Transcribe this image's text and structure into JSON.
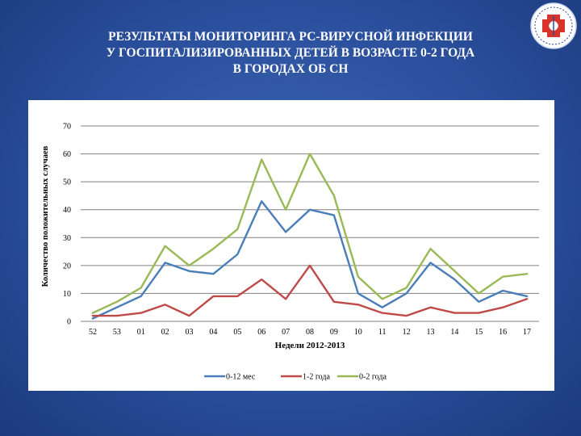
{
  "slide": {
    "title_lines": [
      "РЕЗУЛЬТАТЫ МОНИТОРИНГА РС-ВИРУСНОЙ ИНФЕКЦИИ",
      "У ГОСПИТАЛИЗИРОВАННЫХ ДЕТЕЙ В ВОЗРАСТЕ 0-2 ГОДА",
      "В ГОРОДАХ ОБ СН"
    ]
  },
  "chart_data": {
    "type": "line",
    "xlabel": "Недели 2012-2013",
    "ylabel": "Количество положительных случаев",
    "ylim": [
      0,
      70
    ],
    "yticks": [
      0,
      10,
      20,
      30,
      40,
      50,
      60,
      70
    ],
    "grid": true,
    "legend_position": "bottom",
    "categories": [
      "52",
      "53",
      "01",
      "02",
      "03",
      "04",
      "05",
      "06",
      "07",
      "08",
      "09",
      "10",
      "11",
      "12",
      "13",
      "14",
      "15",
      "16",
      "17"
    ],
    "series": [
      {
        "name": "0-12 мес",
        "color": "#4a7ebb",
        "values": [
          1,
          5,
          9,
          21,
          18,
          17,
          24,
          43,
          32,
          40,
          38,
          10,
          5,
          10,
          21,
          15,
          7,
          11,
          9
        ]
      },
      {
        "name": "1-2 года",
        "color": "#be4b48",
        "values": [
          2,
          2,
          3,
          6,
          2,
          9,
          9,
          15,
          8,
          20,
          7,
          6,
          3,
          2,
          5,
          3,
          3,
          5,
          8
        ]
      },
      {
        "name": "0-2 года",
        "color": "#98b954",
        "values": [
          3,
          7,
          12,
          27,
          20,
          26,
          33,
          58,
          40,
          60,
          45,
          16,
          8,
          12,
          26,
          18,
          10,
          16,
          17
        ]
      }
    ]
  }
}
